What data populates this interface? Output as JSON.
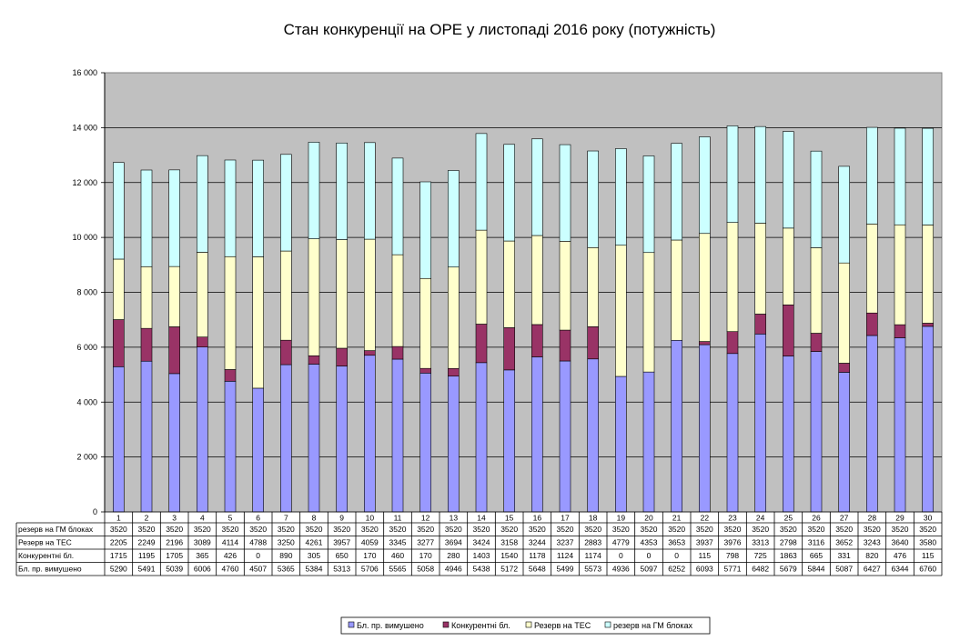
{
  "chart_data": {
    "type": "bar",
    "stacked": true,
    "title": "Стан конкуренції на ОРЕ  у листопаді 2016 року (потужність)",
    "categories": [
      "1",
      "2",
      "3",
      "4",
      "5",
      "6",
      "7",
      "8",
      "9",
      "10",
      "11",
      "12",
      "13",
      "14",
      "15",
      "16",
      "17",
      "18",
      "19",
      "20",
      "21",
      "22",
      "23",
      "24",
      "25",
      "26",
      "27",
      "28",
      "29",
      "30"
    ],
    "ylim": [
      0,
      16000
    ],
    "yticks": [
      "0",
      "2 000",
      "4 000",
      "6 000",
      "8 000",
      "10 000",
      "12 000",
      "14 000",
      "16 000"
    ],
    "ytick_values": [
      0,
      2000,
      4000,
      6000,
      8000,
      10000,
      12000,
      14000,
      16000
    ],
    "grid": true,
    "legend_position": "bottom",
    "series": [
      {
        "name": "Бл. пр. вимушено",
        "color": "#9999ff",
        "values": [
          5290,
          5491,
          5039,
          6006,
          4760,
          4507,
          5365,
          5384,
          5313,
          5706,
          5565,
          5058,
          4946,
          5438,
          5172,
          5648,
          5499,
          5573,
          4936,
          5097,
          6252,
          6093,
          5771,
          6482,
          5679,
          5844,
          5087,
          6427,
          6344,
          6760
        ]
      },
      {
        "name": "Конкурентні бл.",
        "color": "#993366",
        "values": [
          1715,
          1195,
          1705,
          365,
          426,
          0,
          890,
          305,
          650,
          170,
          460,
          170,
          280,
          1403,
          1540,
          1178,
          1124,
          1174,
          0,
          0,
          0,
          115,
          798,
          725,
          1863,
          665,
          331,
          820,
          476,
          115
        ]
      },
      {
        "name": "Резерв на ТЕС",
        "color": "#ffffcc",
        "values": [
          2205,
          2249,
          2196,
          3089,
          4114,
          4788,
          3250,
          4261,
          3957,
          4059,
          3345,
          3277,
          3694,
          3424,
          3158,
          3244,
          3237,
          2883,
          4779,
          4353,
          3653,
          3937,
          3976,
          3313,
          2798,
          3116,
          3652,
          3243,
          3640,
          3580
        ]
      },
      {
        "name": "резерв на ГМ блоках",
        "color": "#ccffff",
        "values": [
          3520,
          3520,
          3520,
          3520,
          3520,
          3520,
          3520,
          3520,
          3520,
          3520,
          3520,
          3520,
          3520,
          3520,
          3520,
          3520,
          3520,
          3520,
          3520,
          3520,
          3520,
          3520,
          3520,
          3520,
          3520,
          3520,
          3520,
          3520,
          3520,
          3520
        ]
      }
    ],
    "table_rows": [
      {
        "label": "резерв на ГМ блоках",
        "series_index": 3
      },
      {
        "label": "Резерв на ТЕС",
        "series_index": 2
      },
      {
        "label": "Конкурентні бл.",
        "series_index": 1
      },
      {
        "label": "Бл. пр. вимушено",
        "series_index": 0
      }
    ],
    "plot_background": "#c0c0c0"
  }
}
